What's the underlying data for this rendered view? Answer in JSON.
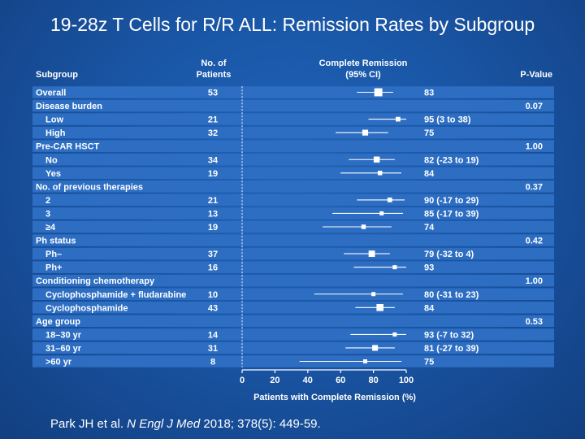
{
  "title": "19-28z T Cells for R/R ALL: Remission Rates by Subgroup",
  "citation": {
    "authors": "Park JH et al.",
    "journal": "N Engl J Med",
    "details": "2018; 378(5): 449-59."
  },
  "colors": {
    "background": "#1a56a6",
    "row_band": "#2d6ec3",
    "text": "#ffffff",
    "marker": "#ffffff"
  },
  "chart_data": {
    "type": "forest",
    "title": "19-28z T Cells for R/R ALL: Remission Rates by Subgroup",
    "xlabel": "Patients with Complete Remission (%)",
    "xlim": [
      0,
      100
    ],
    "xticks": [
      0,
      20,
      40,
      60,
      80,
      100
    ],
    "headers": {
      "subgroup": "Subgroup",
      "patients_line1": "No. of",
      "patients_line2": "Patients",
      "cr_line1": "Complete Remission",
      "cr_line2": "(95% CI)",
      "pvalue": "P-Value"
    },
    "rows": [
      {
        "label": "Overall",
        "indent": false,
        "n": "53",
        "estimate": 83,
        "ci_low": 70,
        "ci_high": 92,
        "cr_text": "83",
        "p": ""
      },
      {
        "label": "Disease burden",
        "indent": false,
        "n": "",
        "estimate": null,
        "ci_low": null,
        "ci_high": null,
        "cr_text": "",
        "p": "0.07"
      },
      {
        "label": "Low",
        "indent": true,
        "n": "21",
        "estimate": 95,
        "ci_low": 77,
        "ci_high": 100,
        "cr_text": "95 (3 to 38)",
        "p": ""
      },
      {
        "label": "High",
        "indent": true,
        "n": "32",
        "estimate": 75,
        "ci_low": 57,
        "ci_high": 89,
        "cr_text": "75",
        "p": ""
      },
      {
        "label": "Pre-CAR HSCT",
        "indent": false,
        "n": "",
        "estimate": null,
        "ci_low": null,
        "ci_high": null,
        "cr_text": "",
        "p": "1.00"
      },
      {
        "label": "No",
        "indent": true,
        "n": "34",
        "estimate": 82,
        "ci_low": 65,
        "ci_high": 93,
        "cr_text": "82 (-23 to 19)",
        "p": ""
      },
      {
        "label": "Yes",
        "indent": true,
        "n": "19",
        "estimate": 84,
        "ci_low": 60,
        "ci_high": 97,
        "cr_text": "84",
        "p": ""
      },
      {
        "label": "No. of previous therapies",
        "indent": false,
        "n": "",
        "estimate": null,
        "ci_low": null,
        "ci_high": null,
        "cr_text": "",
        "p": "0.37"
      },
      {
        "label": "2",
        "indent": true,
        "n": "21",
        "estimate": 90,
        "ci_low": 70,
        "ci_high": 99,
        "cr_text": "90 (-17 to 29)",
        "p": ""
      },
      {
        "label": "3",
        "indent": true,
        "n": "13",
        "estimate": 85,
        "ci_low": 55,
        "ci_high": 98,
        "cr_text": "85 (-17 to 39)",
        "p": ""
      },
      {
        "label": "≥4",
        "indent": true,
        "n": "19",
        "estimate": 74,
        "ci_low": 49,
        "ci_high": 91,
        "cr_text": "74",
        "p": ""
      },
      {
        "label": "Ph status",
        "indent": false,
        "n": "",
        "estimate": null,
        "ci_low": null,
        "ci_high": null,
        "cr_text": "",
        "p": "0.42"
      },
      {
        "label": "Ph–",
        "indent": true,
        "n": "37",
        "estimate": 79,
        "ci_low": 62,
        "ci_high": 90,
        "cr_text": "79 (-32 to 4)",
        "p": ""
      },
      {
        "label": "Ph+",
        "indent": true,
        "n": "16",
        "estimate": 93,
        "ci_low": 68,
        "ci_high": 100,
        "cr_text": "93",
        "p": ""
      },
      {
        "label": "Conditioning chemotherapy",
        "indent": false,
        "n": "",
        "estimate": null,
        "ci_low": null,
        "ci_high": null,
        "cr_text": "",
        "p": "1.00"
      },
      {
        "label": "Cyclophosphamide + fludarabine",
        "indent": true,
        "n": "10",
        "estimate": 80,
        "ci_low": 44,
        "ci_high": 98,
        "cr_text": "80 (-31 to 23)",
        "p": ""
      },
      {
        "label": "Cyclophosphamide",
        "indent": true,
        "n": "43",
        "estimate": 84,
        "ci_low": 69,
        "ci_high": 93,
        "cr_text": "84",
        "p": ""
      },
      {
        "label": "Age group",
        "indent": false,
        "n": "",
        "estimate": null,
        "ci_low": null,
        "ci_high": null,
        "cr_text": "",
        "p": "0.53"
      },
      {
        "label": "18–30 yr",
        "indent": true,
        "n": "14",
        "estimate": 93,
        "ci_low": 66,
        "ci_high": 100,
        "cr_text": "93 (-7 to 32)",
        "p": ""
      },
      {
        "label": "31–60 yr",
        "indent": true,
        "n": "31",
        "estimate": 81,
        "ci_low": 63,
        "ci_high": 93,
        "cr_text": "81 (-27 to 39)",
        "p": ""
      },
      {
        "label": ">60 yr",
        "indent": true,
        "n": "8",
        "estimate": 75,
        "ci_low": 35,
        "ci_high": 97,
        "cr_text": "75",
        "p": ""
      }
    ]
  }
}
